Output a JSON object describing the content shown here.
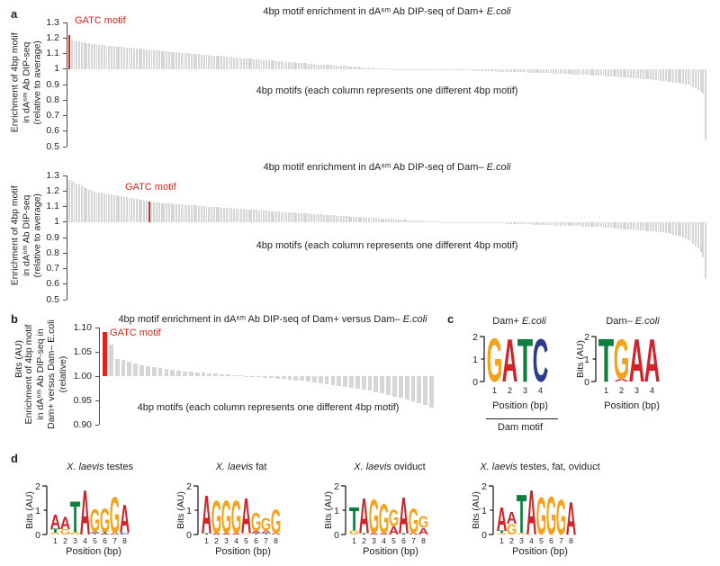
{
  "figure": {
    "panel_labels": {
      "a": "a",
      "b": "b",
      "c": "c",
      "d": "d"
    }
  },
  "base_colors": {
    "A": "#d2232a",
    "C": "#2b3d8f",
    "G": "#f5a31c",
    "T": "#0e7e3e"
  },
  "chart_data": [
    {
      "id": "dam_plus_enrichment",
      "panel": "a",
      "type": "bar",
      "title_pre": "4bp motif enrichment in dA⁶ᵐ Ab DIP-seq of Dam+ ",
      "title_italic": "E.coli",
      "ylabel": "Enrichment of 4bp motif\nin dA⁶ᵐ Ab DIP-seq\n(relative to average)",
      "xlabel": "4bp motifs (each column represents one different 4bp motif)",
      "highlight_label": "GATC motif",
      "highlight_index": 0,
      "highlight_color": "#e2231a",
      "bar_color": "#d6d6d6",
      "ylim": [
        0.5,
        1.3
      ],
      "baseline": 1,
      "yticks": [
        "1.3",
        "1.2",
        "1.1",
        "1",
        "0.9",
        "0.8",
        "0.7",
        "0.6",
        "0.5"
      ],
      "n_bars": 256,
      "values": [
        1.22,
        1.185,
        1.182,
        1.179,
        1.177,
        1.174,
        1.171,
        1.168,
        1.166,
        1.163,
        1.16,
        1.158,
        1.157,
        1.155,
        1.153,
        1.152,
        1.15,
        1.148,
        1.147,
        1.145,
        1.143,
        1.142,
        1.14,
        1.138,
        1.137,
        1.135,
        1.134,
        1.132,
        1.131,
        1.129,
        1.128,
        1.126,
        1.125,
        1.123,
        1.122,
        1.12,
        1.119,
        1.117,
        1.116,
        1.114,
        1.113,
        1.111,
        1.11,
        1.108,
        1.107,
        1.105,
        1.104,
        1.102,
        1.101,
        1.099,
        1.098,
        1.097,
        1.095,
        1.094,
        1.092,
        1.091,
        1.09,
        1.088,
        1.087,
        1.085,
        1.084,
        1.083,
        1.081,
        1.08,
        1.078,
        1.077,
        1.076,
        1.074,
        1.073,
        1.071,
        1.07,
        1.069,
        1.067,
        1.066,
        1.065,
        1.063,
        1.062,
        1.061,
        1.059,
        1.058,
        1.057,
        1.055,
        1.054,
        1.053,
        1.051,
        1.05,
        1.049,
        1.047,
        1.046,
        1.045,
        1.043,
        1.042,
        1.041,
        1.039,
        1.038,
        1.037,
        1.035,
        1.034,
        1.033,
        1.031,
        1.03,
        1.029,
        1.028,
        1.027,
        1.026,
        1.025,
        1.024,
        1.023,
        1.022,
        1.021,
        1.02,
        1.019,
        1.018,
        1.017,
        1.016,
        1.015,
        1.014,
        1.013,
        1.012,
        1.011,
        1.01,
        1.009,
        1.008,
        1.007,
        1.006,
        1.005,
        1.004,
        1.003,
        1.002,
        1.001,
        1.0,
        1.0,
        0.999,
        0.999,
        0.999,
        0.998,
        0.998,
        0.998,
        0.997,
        0.997,
        0.997,
        0.996,
        0.996,
        0.996,
        0.995,
        0.995,
        0.995,
        0.994,
        0.994,
        0.994,
        0.993,
        0.993,
        0.993,
        0.992,
        0.992,
        0.992,
        0.991,
        0.991,
        0.991,
        0.99,
        0.99,
        0.99,
        0.989,
        0.989,
        0.988,
        0.988,
        0.987,
        0.987,
        0.986,
        0.986,
        0.985,
        0.985,
        0.984,
        0.984,
        0.983,
        0.983,
        0.982,
        0.982,
        0.981,
        0.981,
        0.98,
        0.98,
        0.979,
        0.979,
        0.978,
        0.978,
        0.977,
        0.977,
        0.976,
        0.976,
        0.975,
        0.974,
        0.973,
        0.973,
        0.972,
        0.971,
        0.97,
        0.969,
        0.969,
        0.968,
        0.967,
        0.966,
        0.965,
        0.965,
        0.964,
        0.963,
        0.962,
        0.961,
        0.961,
        0.96,
        0.959,
        0.958,
        0.957,
        0.957,
        0.956,
        0.955,
        0.954,
        0.953,
        0.951,
        0.95,
        0.949,
        0.948,
        0.946,
        0.945,
        0.944,
        0.943,
        0.941,
        0.94,
        0.939,
        0.938,
        0.936,
        0.935,
        0.934,
        0.933,
        0.931,
        0.93,
        0.928,
        0.925,
        0.923,
        0.921,
        0.918,
        0.916,
        0.914,
        0.912,
        0.909,
        0.907,
        0.905,
        0.902,
        0.9,
        0.893,
        0.885,
        0.875,
        0.865,
        0.855,
        0.84,
        0.545
      ]
    },
    {
      "id": "dam_minus_enrichment",
      "panel": "a",
      "type": "bar",
      "title_pre": "4bp motif enrichment in dA⁶ᵐ Ab DIP-seq of Dam– ",
      "title_italic": "E.coli",
      "ylabel": "Enrichment of 4bp motif\nin dA⁶ᵐ Ab DIP-seq\n(relative to average)",
      "xlabel": "4bp motifs (each column represents one different 4bp motif)",
      "highlight_label": "GATC motif",
      "highlight_index": 32,
      "highlight_color": "#e2231a",
      "bar_color": "#d6d6d6",
      "ylim": [
        0.5,
        1.3
      ],
      "baseline": 1,
      "yticks": [
        "1.3",
        "1.2",
        "1.1",
        "1",
        "0.9",
        "0.8",
        "0.7",
        "0.6",
        "0.5"
      ],
      "n_bars": 256,
      "values": [
        1.27,
        1.265,
        1.258,
        1.25,
        1.242,
        1.234,
        1.226,
        1.218,
        1.21,
        1.202,
        1.195,
        1.192,
        1.189,
        1.187,
        1.184,
        1.181,
        1.178,
        1.176,
        1.173,
        1.17,
        1.167,
        1.165,
        1.162,
        1.159,
        1.156,
        1.154,
        1.151,
        1.148,
        1.145,
        1.143,
        1.14,
        1.137,
        1.13,
        1.127,
        1.126,
        1.125,
        1.124,
        1.122,
        1.121,
        1.12,
        1.119,
        1.118,
        1.116,
        1.115,
        1.114,
        1.113,
        1.112,
        1.11,
        1.109,
        1.108,
        1.107,
        1.106,
        1.104,
        1.103,
        1.102,
        1.101,
        1.1,
        1.098,
        1.097,
        1.096,
        1.095,
        1.094,
        1.093,
        1.091,
        1.09,
        1.089,
        1.088,
        1.087,
        1.085,
        1.084,
        1.083,
        1.082,
        1.081,
        1.08,
        1.078,
        1.077,
        1.076,
        1.075,
        1.074,
        1.072,
        1.071,
        1.07,
        1.069,
        1.068,
        1.067,
        1.065,
        1.064,
        1.063,
        1.062,
        1.061,
        1.06,
        1.059,
        1.058,
        1.057,
        1.056,
        1.055,
        1.054,
        1.052,
        1.051,
        1.05,
        1.049,
        1.048,
        1.047,
        1.046,
        1.045,
        1.044,
        1.043,
        1.042,
        1.041,
        1.04,
        1.039,
        1.038,
        1.037,
        1.036,
        1.035,
        1.034,
        1.033,
        1.032,
        1.03,
        1.029,
        1.028,
        1.027,
        1.026,
        1.025,
        1.024,
        1.023,
        1.023,
        1.022,
        1.021,
        1.02,
        1.019,
        1.018,
        1.017,
        1.016,
        1.015,
        1.014,
        1.013,
        1.012,
        1.011,
        1.01,
        1.009,
        1.008,
        1.007,
        1.007,
        1.006,
        1.005,
        1.004,
        1.003,
        1.002,
        1.001,
        1.0,
        1.0,
        0.999,
        0.999,
        0.998,
        0.998,
        0.997,
        0.997,
        0.997,
        0.996,
        0.996,
        0.995,
        0.995,
        0.994,
        0.994,
        0.994,
        0.993,
        0.993,
        0.992,
        0.992,
        0.991,
        0.991,
        0.991,
        0.99,
        0.99,
        0.989,
        0.989,
        0.988,
        0.988,
        0.988,
        0.987,
        0.987,
        0.986,
        0.986,
        0.985,
        0.985,
        0.984,
        0.984,
        0.983,
        0.982,
        0.982,
        0.981,
        0.98,
        0.98,
        0.979,
        0.978,
        0.978,
        0.977,
        0.977,
        0.976,
        0.975,
        0.975,
        0.974,
        0.973,
        0.973,
        0.972,
        0.971,
        0.971,
        0.97,
        0.969,
        0.969,
        0.968,
        0.967,
        0.967,
        0.966,
        0.965,
        0.964,
        0.962,
        0.961,
        0.959,
        0.958,
        0.957,
        0.955,
        0.954,
        0.952,
        0.951,
        0.95,
        0.948,
        0.947,
        0.945,
        0.944,
        0.943,
        0.941,
        0.94,
        0.938,
        0.937,
        0.935,
        0.934,
        0.933,
        0.931,
        0.93,
        0.925,
        0.92,
        0.915,
        0.91,
        0.905,
        0.9,
        0.895,
        0.885,
        0.875,
        0.862,
        0.848,
        0.83,
        0.808,
        0.77,
        0.635
      ]
    },
    {
      "id": "dam_plus_vs_minus_enrichment",
      "panel": "b",
      "type": "bar",
      "title_pre": "4bp motif enrichment in dA⁶ᵐ Ab DIP-seq of Dam+ versus Dam– ",
      "title_italic": "E.coli",
      "ylabel": "Enrichment of 4bp motif\nin dA⁶ᵐ Ab DIP-seq in\nDam+ versus Dam– E.coli\n(relative)",
      "xlabel": "4bp motifs (each column represents one different 4bp motif)",
      "highlight_label": "GATC motif",
      "highlight_index": 0,
      "highlight_color": "#e2231a",
      "bar_color": "#d6d6d6",
      "ylim": [
        0.9,
        1.1
      ],
      "baseline": 1,
      "yticks": [
        "1.10",
        "1.05",
        "1.00",
        "0.95",
        "0.90"
      ],
      "n_bars": 54,
      "values": [
        1.09,
        1.065,
        1.036,
        1.034,
        1.03,
        1.026,
        1.023,
        1.021,
        1.019,
        1.017,
        1.015,
        1.013,
        1.012,
        1.01,
        1.009,
        1.008,
        1.007,
        1.006,
        1.005,
        1.004,
        1.003,
        1.002,
        1.001,
        1.0,
        0.999,
        0.998,
        0.997,
        0.996,
        0.995,
        0.994,
        0.992,
        0.991,
        0.99,
        0.988,
        0.987,
        0.985,
        0.984,
        0.982,
        0.98,
        0.978,
        0.976,
        0.974,
        0.972,
        0.97,
        0.967,
        0.964,
        0.961,
        0.958,
        0.955,
        0.952,
        0.948,
        0.944,
        0.94,
        0.935
      ]
    },
    {
      "id": "logo_dam_plus",
      "panel": "c",
      "type": "sequence_logo",
      "title_pre": "Dam+ ",
      "title_italic": "E.coli",
      "title_post": "",
      "ylabel": "Bits (AU)",
      "yticks": [
        "2",
        "1",
        "0"
      ],
      "xlabel": "Position (bp)",
      "footnote": "Dam motif",
      "xticks": [
        "1",
        "2",
        "3",
        "4"
      ],
      "consensus": "GATC",
      "stacks": [
        [
          [
            "G",
            2.0
          ]
        ],
        [
          [
            "A",
            1.97
          ]
        ],
        [
          [
            "T",
            2.0
          ]
        ],
        [
          [
            "C",
            1.97
          ]
        ]
      ]
    },
    {
      "id": "logo_dam_minus",
      "panel": "c",
      "type": "sequence_logo",
      "title_pre": "Dam– ",
      "title_italic": "E.coli",
      "title_post": "",
      "ylabel": "Bits (AU)",
      "yticks": [
        "2",
        "1",
        "0"
      ],
      "xlabel": "Position (bp)",
      "xticks": [
        "1",
        "2",
        "3",
        "4"
      ],
      "consensus": "TGAA",
      "stacks": [
        [
          [
            "T",
            2.0
          ]
        ],
        [
          [
            "G",
            1.82
          ],
          [
            "A",
            0.13
          ]
        ],
        [
          [
            "A",
            1.97
          ]
        ],
        [
          [
            "A",
            1.97
          ]
        ]
      ]
    },
    {
      "id": "logo_xlaevis_testes",
      "panel": "d",
      "type": "sequence_logo",
      "title_pre": "",
      "title_italic": "X. laevis",
      "title_post": " testes",
      "ylabel": "Bits (AU)",
      "yticks": [
        "2",
        "1",
        "0"
      ],
      "xlabel": "Position (bp)",
      "xticks": [
        "1",
        "2",
        "3",
        "4",
        "5",
        "6",
        "7",
        "8"
      ],
      "consensus": "AATAGGGA",
      "stacks": [
        [
          [
            "A",
            0.6
          ],
          [
            "T",
            0.17
          ],
          [
            "G",
            0.07
          ]
        ],
        [
          [
            "A",
            0.52
          ],
          [
            "G",
            0.22
          ]
        ],
        [
          [
            "T",
            1.32
          ],
          [
            "G",
            0.1
          ]
        ],
        [
          [
            "A",
            1.9
          ]
        ],
        [
          [
            "G",
            0.95
          ],
          [
            "A",
            0.08
          ],
          [
            "T",
            0.05
          ]
        ],
        [
          [
            "G",
            1.0
          ],
          [
            "T",
            0.07
          ],
          [
            "A",
            0.05
          ]
        ],
        [
          [
            "G",
            1.55
          ],
          [
            "A",
            0.06
          ]
        ],
        [
          [
            "A",
            1.2
          ],
          [
            "C",
            0.08
          ]
        ]
      ]
    },
    {
      "id": "logo_xlaevis_fat",
      "panel": "d",
      "type": "sequence_logo",
      "title_pre": "",
      "title_italic": "X. laevis",
      "title_post": " fat",
      "ylabel": "Bits (AU)",
      "yticks": [
        "2",
        "1",
        "0"
      ],
      "xlabel": "Position (bp)",
      "xticks": [
        "1",
        "2",
        "3",
        "4",
        "5",
        "6",
        "7",
        "8"
      ],
      "consensus": "AGGGAGGG",
      "stacks": [
        [
          [
            "A",
            1.62
          ],
          [
            "T",
            0.05
          ]
        ],
        [
          [
            "G",
            1.38
          ],
          [
            "A",
            0.05
          ]
        ],
        [
          [
            "G",
            1.4
          ],
          [
            "A",
            0.05
          ]
        ],
        [
          [
            "G",
            1.38
          ],
          [
            "A",
            0.05
          ]
        ],
        [
          [
            "A",
            1.48
          ],
          [
            "G",
            0.05
          ]
        ],
        [
          [
            "G",
            0.78
          ],
          [
            "A",
            0.1
          ],
          [
            "T",
            0.05
          ]
        ],
        [
          [
            "G",
            0.55
          ],
          [
            "A",
            0.12
          ],
          [
            "T",
            0.05
          ]
        ],
        [
          [
            "G",
            1.02
          ],
          [
            "A",
            0.06
          ]
        ]
      ]
    },
    {
      "id": "logo_xlaevis_oviduct",
      "panel": "d",
      "type": "sequence_logo",
      "title_pre": "",
      "title_italic": "X. laevis",
      "title_post": " oviduct",
      "ylabel": "Bits (AU)",
      "yticks": [
        "2",
        "1",
        "0"
      ],
      "xlabel": "Position (bp)",
      "xticks": [
        "1",
        "2",
        "3",
        "4",
        "5",
        "6",
        "7",
        "8"
      ],
      "consensus": "TAGGGAGG",
      "stacks": [
        [
          [
            "T",
            1.0
          ],
          [
            "G",
            0.16
          ]
        ],
        [
          [
            "A",
            1.5
          ],
          [
            "T",
            0.05
          ]
        ],
        [
          [
            "G",
            1.45
          ],
          [
            "A",
            0.05
          ]
        ],
        [
          [
            "G",
            1.25
          ],
          [
            "A",
            0.05
          ]
        ],
        [
          [
            "G",
            0.7
          ],
          [
            "A",
            0.35
          ]
        ],
        [
          [
            "A",
            1.55
          ],
          [
            "T",
            0.05
          ]
        ],
        [
          [
            "G",
            1.05
          ],
          [
            "A",
            0.07
          ]
        ],
        [
          [
            "G",
            0.5
          ],
          [
            "A",
            0.28
          ]
        ]
      ]
    },
    {
      "id": "logo_xlaevis_combined",
      "panel": "d",
      "type": "sequence_logo",
      "title_pre": "",
      "title_italic": "X. laevis",
      "title_post": " testes, fat, oviduct",
      "ylabel": "Bits (AU)",
      "yticks": [
        "2",
        "1",
        "0"
      ],
      "xlabel": "Position (bp)",
      "xticks": [
        "1",
        "2",
        "3",
        "4",
        "5",
        "6",
        "7",
        "8"
      ],
      "consensus": "AATAGGGA",
      "stacks": [
        [
          [
            "A",
            1.0
          ],
          [
            "T",
            0.12
          ],
          [
            "G",
            0.05
          ]
        ],
        [
          [
            "A",
            0.5
          ],
          [
            "G",
            0.45
          ]
        ],
        [
          [
            "T",
            1.65
          ],
          [
            "G",
            0.05
          ]
        ],
        [
          [
            "A",
            1.9
          ]
        ],
        [
          [
            "G",
            1.6
          ]
        ],
        [
          [
            "G",
            1.62
          ]
        ],
        [
          [
            "G",
            1.5
          ]
        ],
        [
          [
            "A",
            1.4
          ]
        ]
      ]
    }
  ]
}
